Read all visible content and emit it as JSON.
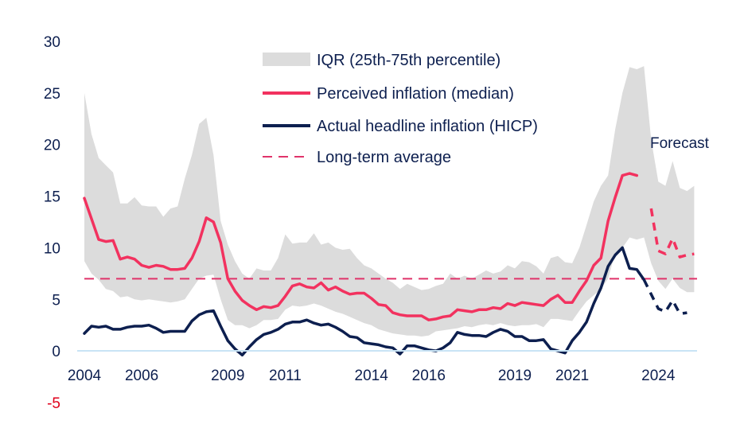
{
  "chart_data": {
    "type": "line",
    "title": "",
    "xlabel": "",
    "ylabel": "",
    "ylim": [
      -5,
      30
    ],
    "xlim": [
      2004,
      2025.35
    ],
    "y_ticks": [
      "30",
      "25",
      "20",
      "15",
      "10",
      "5",
      "0",
      "-5"
    ],
    "x_ticks": [
      "2004",
      "2006",
      "2009",
      "2011",
      "2014",
      "2016",
      "2019",
      "2021",
      "2024"
    ],
    "grid": false,
    "legend_position": "top-center",
    "legend": {
      "iqr": "IQR (25th-75th percentile)",
      "perceived": "Perceived inflation (median)",
      "actual": "Actual headline inflation (HICP)",
      "average": "Long-term average"
    },
    "annotation": "Forecast",
    "colors": {
      "iqr": "#dcdcdc",
      "perceived": "#f2325f",
      "actual": "#0d1f4f",
      "average": "#e0336a",
      "negative_tick": "#e0001b",
      "axis": "#c9e4f5"
    },
    "long_term_average": 7,
    "iqr_band": {
      "x": [
        2004.0,
        2004.25,
        2004.5,
        2004.75,
        2005.0,
        2005.25,
        2005.5,
        2005.75,
        2006.0,
        2006.25,
        2006.5,
        2006.75,
        2007.0,
        2007.25,
        2007.5,
        2007.75,
        2008.0,
        2008.25,
        2008.5,
        2008.75,
        2009.0,
        2009.25,
        2009.5,
        2009.75,
        2010.0,
        2010.25,
        2010.5,
        2010.75,
        2011.0,
        2011.25,
        2011.5,
        2011.75,
        2012.0,
        2012.25,
        2012.5,
        2012.75,
        2013.0,
        2013.25,
        2013.5,
        2013.75,
        2014.0,
        2014.25,
        2014.5,
        2014.75,
        2015.0,
        2015.25,
        2015.5,
        2015.75,
        2016.0,
        2016.25,
        2016.5,
        2016.75,
        2017.0,
        2017.25,
        2017.5,
        2017.75,
        2018.0,
        2018.25,
        2018.5,
        2018.75,
        2019.0,
        2019.25,
        2019.5,
        2019.75,
        2020.0,
        2020.25,
        2020.5,
        2020.75,
        2021.0,
        2021.25,
        2021.5,
        2021.75,
        2022.0,
        2022.25,
        2022.5,
        2022.75,
        2023.0,
        2023.25,
        2023.5,
        2023.75,
        2024.0,
        2024.25,
        2024.5,
        2024.75,
        2025.0,
        2025.25
      ],
      "upper": [
        25.0,
        21.0,
        18.7,
        18.0,
        17.3,
        14.3,
        14.3,
        14.9,
        14.1,
        14.0,
        14.0,
        13.0,
        13.8,
        14.0,
        16.7,
        19.0,
        22.0,
        22.6,
        19.0,
        12.6,
        10.3,
        8.7,
        7.5,
        7.0,
        8.0,
        7.8,
        7.8,
        9.0,
        11.3,
        10.4,
        10.5,
        10.5,
        11.4,
        10.3,
        10.5,
        10.0,
        9.8,
        9.9,
        9.0,
        8.3,
        8.0,
        7.5,
        7.0,
        6.6,
        6.0,
        6.5,
        6.2,
        5.9,
        6.0,
        6.3,
        6.5,
        7.5,
        7.0,
        7.3,
        7.0,
        7.4,
        7.8,
        7.5,
        7.7,
        8.3,
        8.0,
        8.7,
        8.6,
        8.2,
        7.5,
        9.0,
        9.2,
        8.6,
        8.5,
        10.0,
        12.2,
        14.5,
        16.0,
        17.0,
        21.5,
        25.0,
        27.5,
        27.3,
        27.6,
        20.5,
        16.4,
        16.0,
        18.4,
        15.8,
        15.5,
        16.0
      ],
      "lower": [
        8.7,
        7.5,
        6.9,
        6.0,
        5.8,
        5.2,
        5.3,
        5.0,
        4.9,
        5.0,
        4.9,
        4.8,
        4.7,
        4.8,
        5.0,
        6.0,
        7.0,
        7.3,
        7.4,
        5.0,
        3.0,
        2.5,
        2.5,
        2.2,
        2.5,
        3.0,
        3.0,
        3.1,
        4.0,
        4.4,
        4.3,
        4.4,
        4.6,
        4.4,
        4.1,
        3.8,
        3.6,
        3.3,
        3.0,
        2.7,
        2.5,
        2.1,
        1.9,
        1.7,
        1.6,
        1.5,
        1.5,
        1.4,
        1.5,
        1.9,
        2.0,
        2.1,
        2.2,
        2.4,
        2.3,
        2.5,
        2.6,
        2.5,
        2.7,
        2.5,
        2.4,
        2.5,
        2.5,
        2.6,
        2.3,
        3.1,
        3.1,
        3.0,
        2.9,
        3.9,
        4.8,
        5.4,
        6.0,
        7.0,
        9.5,
        10.0,
        11.0,
        10.8,
        11.0,
        8.5,
        6.8,
        6.0,
        7.0,
        6.1,
        5.7,
        5.7
      ]
    },
    "series": [
      {
        "name": "Perceived inflation (median)",
        "style": "solid",
        "x": [
          2004.0,
          2004.25,
          2004.5,
          2004.75,
          2005.0,
          2005.25,
          2005.5,
          2005.75,
          2006.0,
          2006.25,
          2006.5,
          2006.75,
          2007.0,
          2007.25,
          2007.5,
          2007.75,
          2008.0,
          2008.25,
          2008.5,
          2008.75,
          2009.0,
          2009.25,
          2009.5,
          2009.75,
          2010.0,
          2010.25,
          2010.5,
          2010.75,
          2011.0,
          2011.25,
          2011.5,
          2011.75,
          2012.0,
          2012.25,
          2012.5,
          2012.75,
          2013.0,
          2013.25,
          2013.5,
          2013.75,
          2014.0,
          2014.25,
          2014.5,
          2014.75,
          2015.0,
          2015.25,
          2015.5,
          2015.75,
          2016.0,
          2016.25,
          2016.5,
          2016.75,
          2017.0,
          2017.25,
          2017.5,
          2017.75,
          2018.0,
          2018.25,
          2018.5,
          2018.75,
          2019.0,
          2019.25,
          2019.5,
          2019.75,
          2020.0,
          2020.25,
          2020.5,
          2020.75,
          2021.0,
          2021.25,
          2021.5,
          2021.75,
          2022.0,
          2022.25,
          2022.5,
          2022.75,
          2023.0,
          2023.25
        ],
        "values": [
          14.8,
          12.8,
          10.8,
          10.6,
          10.7,
          8.9,
          9.1,
          8.9,
          8.3,
          8.1,
          8.3,
          8.2,
          7.9,
          7.9,
          8.0,
          9.0,
          10.6,
          12.9,
          12.5,
          10.5,
          7.0,
          5.8,
          4.9,
          4.4,
          4.0,
          4.3,
          4.2,
          4.4,
          5.3,
          6.3,
          6.5,
          6.2,
          6.1,
          6.6,
          5.9,
          6.2,
          5.8,
          5.5,
          5.6,
          5.6,
          5.1,
          4.5,
          4.4,
          3.7,
          3.5,
          3.4,
          3.4,
          3.4,
          3.0,
          3.1,
          3.3,
          3.4,
          4.0,
          3.9,
          3.8,
          4.0,
          4.0,
          4.2,
          4.1,
          4.6,
          4.4,
          4.7,
          4.6,
          4.5,
          4.4,
          5.0,
          5.4,
          4.7,
          4.7,
          5.8,
          6.8,
          8.3,
          9.0,
          12.6,
          14.9,
          17.0,
          17.2,
          17.0
        ]
      },
      {
        "name": "Perceived inflation (median)",
        "style": "dashed",
        "x": [
          2023.75,
          2024.0,
          2024.25,
          2024.5,
          2024.75,
          2025.0,
          2025.25
        ],
        "values": [
          13.8,
          9.7,
          9.4,
          10.9,
          9.1,
          9.3,
          9.4
        ]
      },
      {
        "name": "Actual headline inflation (HICP)",
        "style": "solid",
        "x": [
          2004.0,
          2004.25,
          2004.5,
          2004.75,
          2005.0,
          2005.25,
          2005.5,
          2005.75,
          2006.0,
          2006.25,
          2006.5,
          2006.75,
          2007.0,
          2007.25,
          2007.5,
          2007.75,
          2008.0,
          2008.25,
          2008.5,
          2008.75,
          2009.0,
          2009.25,
          2009.5,
          2009.75,
          2010.0,
          2010.25,
          2010.5,
          2010.75,
          2011.0,
          2011.25,
          2011.5,
          2011.75,
          2012.0,
          2012.25,
          2012.5,
          2012.75,
          2013.0,
          2013.25,
          2013.5,
          2013.75,
          2014.0,
          2014.25,
          2014.5,
          2014.75,
          2015.0,
          2015.25,
          2015.5,
          2015.75,
          2016.0,
          2016.25,
          2016.5,
          2016.75,
          2017.0,
          2017.25,
          2017.5,
          2017.75,
          2018.0,
          2018.25,
          2018.5,
          2018.75,
          2019.0,
          2019.25,
          2019.5,
          2019.75,
          2020.0,
          2020.25,
          2020.5,
          2020.75,
          2021.0,
          2021.25,
          2021.5,
          2021.75,
          2022.0,
          2022.25,
          2022.5,
          2022.75,
          2023.0,
          2023.25,
          2023.5
        ],
        "values": [
          1.7,
          2.4,
          2.3,
          2.4,
          2.1,
          2.1,
          2.3,
          2.4,
          2.4,
          2.5,
          2.2,
          1.8,
          1.9,
          1.9,
          1.9,
          2.9,
          3.5,
          3.8,
          3.9,
          2.4,
          1.0,
          0.2,
          -0.4,
          0.4,
          1.1,
          1.6,
          1.8,
          2.1,
          2.6,
          2.8,
          2.8,
          3.0,
          2.7,
          2.5,
          2.6,
          2.3,
          1.9,
          1.4,
          1.3,
          0.8,
          0.7,
          0.6,
          0.4,
          0.3,
          -0.3,
          0.5,
          0.5,
          0.3,
          0.1,
          0.0,
          0.3,
          0.8,
          1.8,
          1.6,
          1.5,
          1.5,
          1.4,
          1.8,
          2.1,
          1.9,
          1.4,
          1.4,
          1.0,
          1.0,
          1.1,
          0.2,
          0.0,
          -0.2,
          1.0,
          1.8,
          2.8,
          4.6,
          6.1,
          8.2,
          9.3,
          10.0,
          8.0,
          7.9,
          6.9
        ]
      },
      {
        "name": "Actual headline inflation (HICP)",
        "style": "dashed",
        "x": [
          2023.5,
          2023.75,
          2024.0,
          2024.25,
          2024.5,
          2024.75,
          2025.0
        ],
        "values": [
          6.9,
          5.5,
          4.1,
          3.8,
          4.9,
          3.6,
          3.7
        ]
      }
    ]
  }
}
